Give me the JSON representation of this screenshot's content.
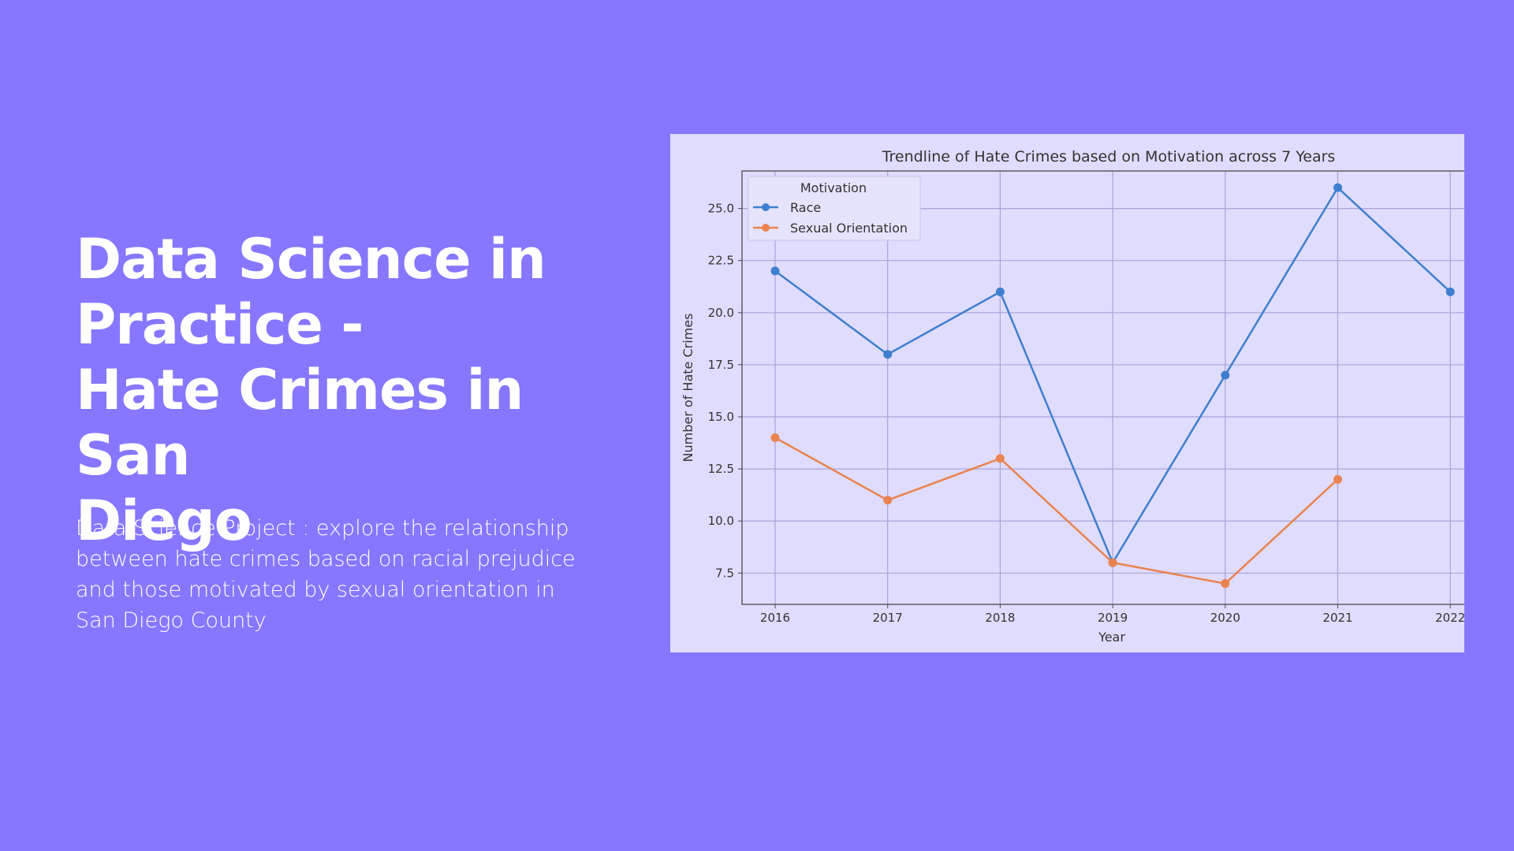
{
  "slide": {
    "title_lines": [
      "Data Science in",
      "Practice -",
      "Hate Crimes in San",
      "Diego"
    ],
    "description": "Data Science Project : explore the relationship between hate crimes based on racial prejudice and those motivated by sexual orientation in San Diego County"
  },
  "colors": {
    "background": "#8677fe",
    "card": "#e0dcfe",
    "race": "#3f7fcf",
    "sexual_orientation": "#e98350"
  },
  "chart_data": {
    "type": "line",
    "title": "Trendline of Hate Crimes based on Motivation across 7 Years",
    "xlabel": "Year",
    "ylabel": "Number of Hate Crimes",
    "x": [
      "2016",
      "2017",
      "2018",
      "2019",
      "2020",
      "2021",
      "2022"
    ],
    "xticks": [
      "2016",
      "2017",
      "2018",
      "2019",
      "2020",
      "2021",
      "2022"
    ],
    "yticks": [
      "7.5",
      "10.0",
      "12.5",
      "15.0",
      "17.5",
      "20.0",
      "22.5",
      "25.0"
    ],
    "ylim": [
      6,
      26.8
    ],
    "grid": true,
    "legend": {
      "title": "Motivation",
      "position": "top-left"
    },
    "series": [
      {
        "name": "Race",
        "color": "#3f7fcf",
        "values": [
          22,
          18,
          21,
          8,
          17,
          26,
          21
        ]
      },
      {
        "name": "Sexual Orientation",
        "color": "#e98350",
        "values": [
          14,
          11,
          13,
          8,
          7,
          12,
          null
        ]
      }
    ]
  }
}
